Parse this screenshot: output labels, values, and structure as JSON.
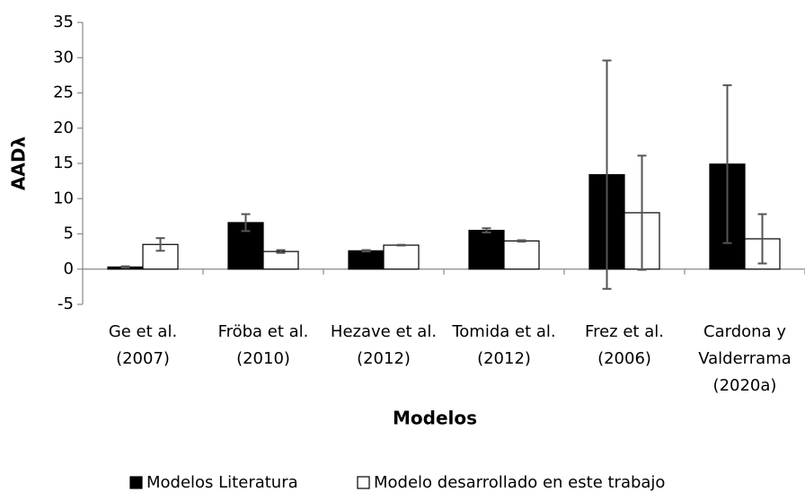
{
  "chart_data": {
    "type": "bar",
    "y_label": "AADλ",
    "x_label": "Modelos",
    "categories": [
      "Ge et al.\n(2007)",
      "Fröba et al.\n(2010)",
      "Hezave et al.\n(2012)",
      "Tomida et al.\n(2012)",
      "Frez et al.\n(2006)",
      "Cardona y\nValderrama\n(2020a)"
    ],
    "series": [
      {
        "name": "Modelos Literatura",
        "color": "#000000",
        "values": [
          0.3,
          6.6,
          2.6,
          5.5,
          13.4,
          14.9
        ],
        "errors": [
          0.1,
          1.2,
          0.1,
          0.3,
          16.2,
          11.2
        ]
      },
      {
        "name": "Modelo desarrollado en este trabajo",
        "color": "#ffffff",
        "values": [
          3.5,
          2.5,
          3.4,
          4.0,
          8.0,
          4.3
        ],
        "errors": [
          0.9,
          0.2,
          0.05,
          0.1,
          8.1,
          3.5
        ]
      }
    ],
    "ylim": [
      -5,
      35
    ],
    "yticks": [
      -5,
      0,
      5,
      10,
      15,
      20,
      25,
      30,
      35
    ],
    "legend": "bottom",
    "grid": false
  }
}
